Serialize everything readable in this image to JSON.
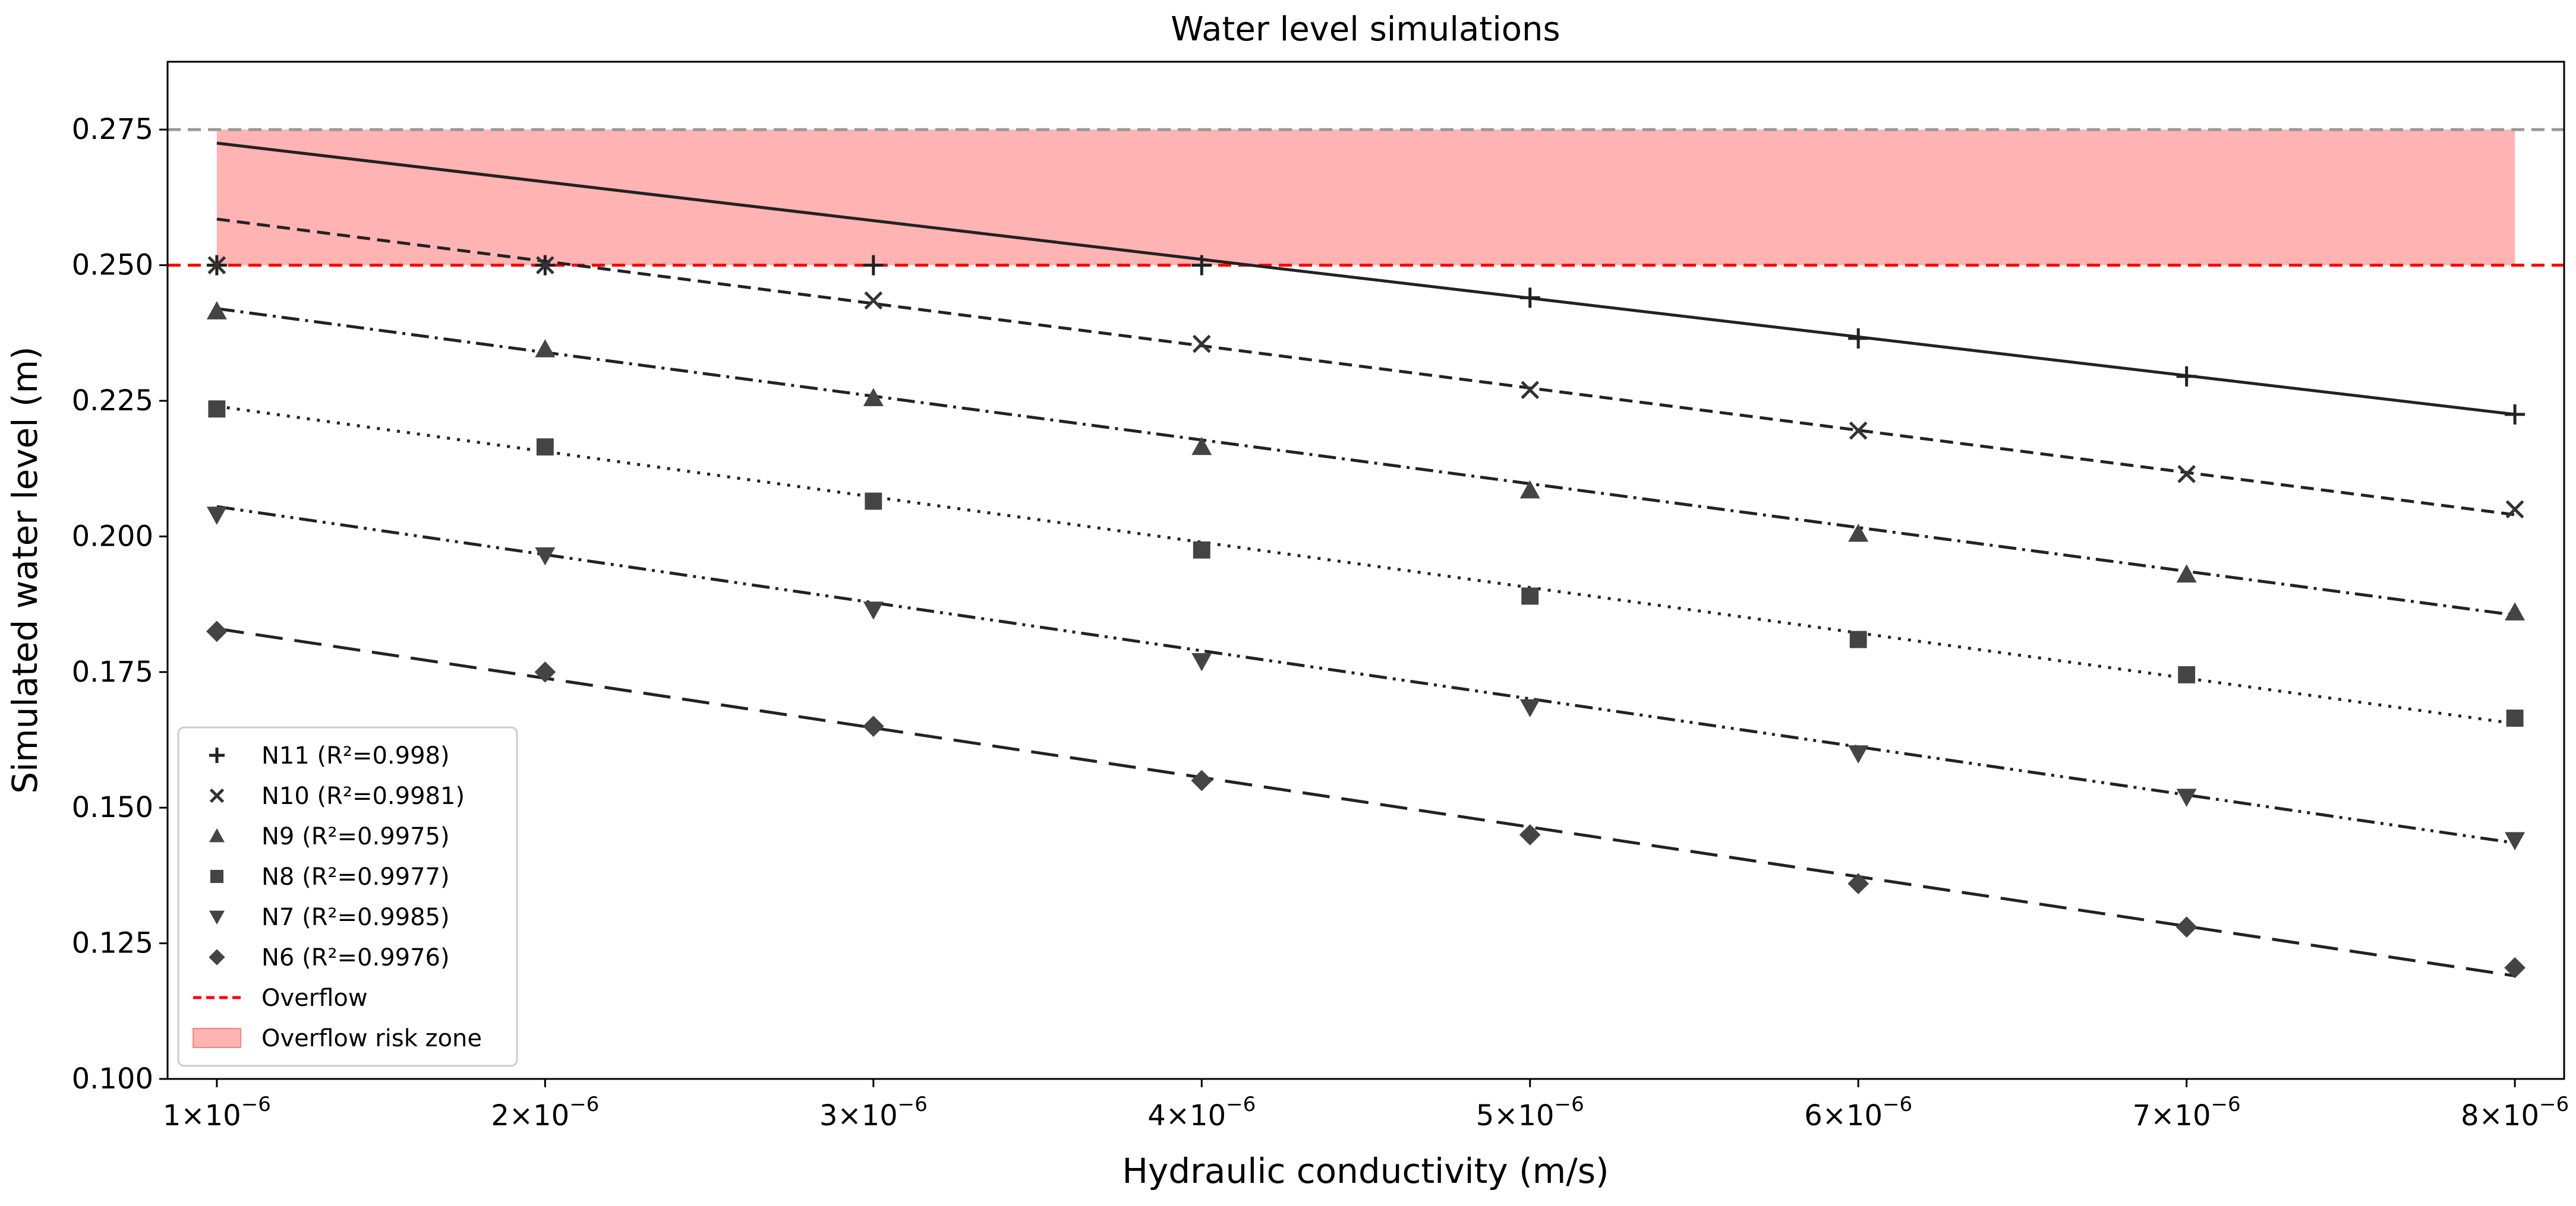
{
  "chart_data": {
    "type": "line",
    "title": "Water level simulations",
    "xlabel": "Hydraulic conductivity (m/s)",
    "ylabel": "Simulated water level (m)",
    "xlim": [
      0.85,
      8.15
    ],
    "ylim": [
      0.1,
      0.2875
    ],
    "grid": false,
    "legend_position": "lower-left",
    "x": [
      1,
      2,
      3,
      4,
      5,
      6,
      7,
      8
    ],
    "x_tick_labels": [
      {
        "mant": "1",
        "exp": "−6"
      },
      {
        "mant": "2",
        "exp": "−6"
      },
      {
        "mant": "3",
        "exp": "−6"
      },
      {
        "mant": "4",
        "exp": "−6"
      },
      {
        "mant": "5",
        "exp": "−6"
      },
      {
        "mant": "6",
        "exp": "−6"
      },
      {
        "mant": "7",
        "exp": "−6"
      },
      {
        "mant": "8",
        "exp": "−6"
      }
    ],
    "x_tick_times": "×10",
    "y_ticks": [
      "0.100",
      "0.125",
      "0.150",
      "0.175",
      "0.200",
      "0.225",
      "0.250",
      "0.275"
    ],
    "y_tick_values": [
      0.1,
      0.125,
      0.15,
      0.175,
      0.2,
      0.225,
      0.25,
      0.275
    ],
    "series": [
      {
        "name": "N11 (R²=0.998)",
        "marker": "plus",
        "dash": "solid",
        "values": [
          0.25,
          0.25,
          0.25,
          0.25,
          0.244,
          0.2365,
          0.2295,
          0.2225
        ],
        "fit": [
          0.2725,
          0.2225
        ]
      },
      {
        "name": "N10 (R²=0.9981)",
        "marker": "x",
        "dash": "dashed",
        "values": [
          0.25,
          0.25,
          0.2435,
          0.2355,
          0.227,
          0.2195,
          0.2115,
          0.205
        ],
        "fit": [
          0.2585,
          0.204
        ]
      },
      {
        "name": "N9 (R²=0.9975)",
        "marker": "triangle-up",
        "dash": "dashdot",
        "values": [
          0.2415,
          0.2345,
          0.2255,
          0.2165,
          0.2085,
          0.2005,
          0.193,
          0.186
        ],
        "fit": [
          0.242,
          0.1855
        ]
      },
      {
        "name": "N8 (R²=0.9977)",
        "marker": "square",
        "dash": "dotted",
        "values": [
          0.2235,
          0.2165,
          0.2065,
          0.1975,
          0.189,
          0.181,
          0.1745,
          0.1665
        ],
        "fit": [
          0.224,
          0.1655
        ]
      },
      {
        "name": "N7 (R²=0.9985)",
        "marker": "triangle-down",
        "dash": "dashdotdot",
        "values": [
          0.204,
          0.1965,
          0.1865,
          0.177,
          0.1685,
          0.16,
          0.152,
          0.144
        ],
        "fit": [
          0.2055,
          0.1435
        ]
      },
      {
        "name": "N6 (R²=0.9976)",
        "marker": "diamond",
        "dash": "longdash",
        "values": [
          0.1825,
          0.175,
          0.165,
          0.155,
          0.145,
          0.136,
          0.128,
          0.1205
        ],
        "fit": [
          0.183,
          0.119
        ]
      }
    ],
    "overflow": {
      "label": "Overflow",
      "y": 0.25,
      "color": "#ff0000"
    },
    "top_reference": {
      "y": 0.275,
      "color": "#999999"
    },
    "risk_zone": {
      "label": "Overflow risk zone",
      "y_range": [
        0.25,
        0.275
      ],
      "x_range": [
        1,
        8
      ],
      "color": "#ff8080"
    },
    "marker_color": "#444444",
    "line_color": "#222222"
  }
}
